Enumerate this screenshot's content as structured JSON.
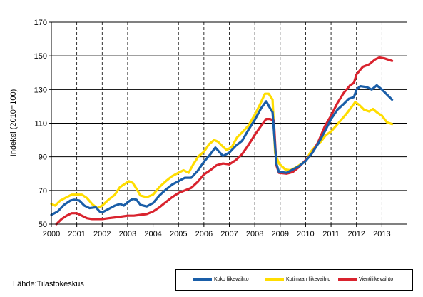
{
  "chart_data": {
    "type": "line",
    "title": "",
    "xlabel": "",
    "ylabel": "Indeksi (2010=100)",
    "ylim": [
      50,
      170
    ],
    "yticks": [
      50,
      70,
      90,
      110,
      130,
      150,
      170
    ],
    "xlim": [
      2000,
      2014
    ],
    "xticks": [
      "2000",
      "2001",
      "2002",
      "2003",
      "2004",
      "2005",
      "2006",
      "2007",
      "2008",
      "2009",
      "2010",
      "2011",
      "2012",
      "2013"
    ],
    "grid": "vertical dashed per year, horizontal solid per tick",
    "legend_position": "bottom-right",
    "series": [
      {
        "name": "Koko liikevaihto",
        "color": "#1a5ea8",
        "points": [
          [
            2000.0,
            55.5
          ],
          [
            2000.25,
            57.5
          ],
          [
            2000.5,
            61.5
          ],
          [
            2000.75,
            64.0
          ],
          [
            2000.9,
            64.5
          ],
          [
            2001.1,
            64.0
          ],
          [
            2001.3,
            61.0
          ],
          [
            2001.5,
            59.5
          ],
          [
            2001.75,
            60.0
          ],
          [
            2001.9,
            57.5
          ],
          [
            2002.0,
            57.0
          ],
          [
            2002.25,
            59.0
          ],
          [
            2002.5,
            61.0
          ],
          [
            2002.7,
            62.0
          ],
          [
            2002.85,
            61.0
          ],
          [
            2003.0,
            63.0
          ],
          [
            2003.2,
            65.0
          ],
          [
            2003.35,
            64.5
          ],
          [
            2003.5,
            61.5
          ],
          [
            2003.75,
            60.5
          ],
          [
            2004.0,
            62.5
          ],
          [
            2004.25,
            67.0
          ],
          [
            2004.5,
            70.5
          ],
          [
            2004.75,
            73.5
          ],
          [
            2005.0,
            75.5
          ],
          [
            2005.25,
            77.5
          ],
          [
            2005.5,
            77.5
          ],
          [
            2005.75,
            81.5
          ],
          [
            2006.0,
            87.0
          ],
          [
            2006.25,
            91.5
          ],
          [
            2006.45,
            95.5
          ],
          [
            2006.6,
            93.0
          ],
          [
            2006.75,
            90.5
          ],
          [
            2007.0,
            92.5
          ],
          [
            2007.25,
            96.5
          ],
          [
            2007.5,
            99.5
          ],
          [
            2007.75,
            106.0
          ],
          [
            2008.0,
            112.0
          ],
          [
            2008.25,
            119.0
          ],
          [
            2008.45,
            123.0
          ],
          [
            2008.6,
            119.0
          ],
          [
            2008.7,
            116.5
          ],
          [
            2008.85,
            86.0
          ],
          [
            2008.95,
            81.0
          ],
          [
            2009.25,
            80.5
          ],
          [
            2009.5,
            82.5
          ],
          [
            2009.75,
            84.5
          ],
          [
            2010.0,
            87.5
          ],
          [
            2010.25,
            92.0
          ],
          [
            2010.5,
            98.0
          ],
          [
            2010.75,
            105.0
          ],
          [
            2011.0,
            112.5
          ],
          [
            2011.25,
            118.0
          ],
          [
            2011.5,
            121.5
          ],
          [
            2011.7,
            124.5
          ],
          [
            2011.9,
            125.5
          ],
          [
            2012.0,
            130.0
          ],
          [
            2012.15,
            132.0
          ],
          [
            2012.4,
            131.5
          ],
          [
            2012.6,
            130.0
          ],
          [
            2012.8,
            132.5
          ],
          [
            2013.0,
            130.0
          ],
          [
            2013.2,
            127.0
          ],
          [
            2013.4,
            124.0
          ]
        ]
      },
      {
        "name": "Kotimaan liikevaihto",
        "color": "#ffdd00",
        "points": [
          [
            2000.0,
            62.0
          ],
          [
            2000.15,
            61.0
          ],
          [
            2000.35,
            64.0
          ],
          [
            2000.6,
            66.0
          ],
          [
            2000.8,
            67.5
          ],
          [
            2001.0,
            67.5
          ],
          [
            2001.2,
            67.5
          ],
          [
            2001.4,
            65.5
          ],
          [
            2001.6,
            62.0
          ],
          [
            2001.8,
            59.5
          ],
          [
            2002.0,
            61.0
          ],
          [
            2002.25,
            64.5
          ],
          [
            2002.5,
            67.5
          ],
          [
            2002.7,
            72.0
          ],
          [
            2002.9,
            74.0
          ],
          [
            2003.05,
            75.5
          ],
          [
            2003.2,
            74.5
          ],
          [
            2003.35,
            71.0
          ],
          [
            2003.5,
            67.0
          ],
          [
            2003.75,
            66.0
          ],
          [
            2004.0,
            67.5
          ],
          [
            2004.25,
            72.0
          ],
          [
            2004.5,
            75.5
          ],
          [
            2004.75,
            78.5
          ],
          [
            2005.0,
            80.5
          ],
          [
            2005.2,
            82.0
          ],
          [
            2005.4,
            80.5
          ],
          [
            2005.6,
            86.0
          ],
          [
            2005.8,
            90.5
          ],
          [
            2006.0,
            93.0
          ],
          [
            2006.2,
            97.5
          ],
          [
            2006.4,
            100.0
          ],
          [
            2006.55,
            99.0
          ],
          [
            2006.75,
            96.0
          ],
          [
            2006.9,
            94.0
          ],
          [
            2007.1,
            96.0
          ],
          [
            2007.3,
            101.5
          ],
          [
            2007.5,
            104.5
          ],
          [
            2007.75,
            108.5
          ],
          [
            2008.0,
            115.0
          ],
          [
            2008.2,
            121.0
          ],
          [
            2008.4,
            127.5
          ],
          [
            2008.55,
            127.5
          ],
          [
            2008.7,
            124.0
          ],
          [
            2008.8,
            92.0
          ],
          [
            2008.95,
            86.0
          ],
          [
            2009.2,
            82.5
          ],
          [
            2009.4,
            82.0
          ],
          [
            2009.6,
            83.5
          ],
          [
            2009.8,
            85.5
          ],
          [
            2010.0,
            87.5
          ],
          [
            2010.2,
            93.0
          ],
          [
            2010.4,
            96.5
          ],
          [
            2010.6,
            99.0
          ],
          [
            2010.8,
            103.0
          ],
          [
            2011.0,
            105.0
          ],
          [
            2011.2,
            108.5
          ],
          [
            2011.4,
            112.0
          ],
          [
            2011.6,
            115.5
          ],
          [
            2011.8,
            119.5
          ],
          [
            2011.95,
            122.5
          ],
          [
            2012.1,
            121.0
          ],
          [
            2012.3,
            118.0
          ],
          [
            2012.5,
            117.0
          ],
          [
            2012.65,
            118.5
          ],
          [
            2012.8,
            116.5
          ],
          [
            2013.0,
            114.5
          ],
          [
            2013.2,
            110.5
          ],
          [
            2013.4,
            109.5
          ]
        ]
      },
      {
        "name": "Vientiliikevaihto",
        "color": "#d9232e",
        "points": [
          [
            2000.2,
            50.0
          ],
          [
            2000.4,
            53.0
          ],
          [
            2000.6,
            55.0
          ],
          [
            2000.8,
            56.5
          ],
          [
            2001.0,
            56.5
          ],
          [
            2001.2,
            55.0
          ],
          [
            2001.4,
            53.5
          ],
          [
            2001.6,
            53.0
          ],
          [
            2001.8,
            53.0
          ],
          [
            2002.0,
            53.0
          ],
          [
            2002.25,
            53.5
          ],
          [
            2002.5,
            54.0
          ],
          [
            2002.75,
            54.5
          ],
          [
            2003.0,
            55.0
          ],
          [
            2003.25,
            55.0
          ],
          [
            2003.5,
            55.5
          ],
          [
            2003.75,
            56.0
          ],
          [
            2004.0,
            57.5
          ],
          [
            2004.25,
            60.0
          ],
          [
            2004.5,
            63.0
          ],
          [
            2004.75,
            66.0
          ],
          [
            2005.0,
            68.5
          ],
          [
            2005.25,
            70.0
          ],
          [
            2005.5,
            71.5
          ],
          [
            2005.75,
            75.0
          ],
          [
            2006.0,
            79.5
          ],
          [
            2006.25,
            82.0
          ],
          [
            2006.5,
            85.0
          ],
          [
            2006.75,
            86.0
          ],
          [
            2007.0,
            85.5
          ],
          [
            2007.25,
            88.0
          ],
          [
            2007.5,
            91.5
          ],
          [
            2007.75,
            97.0
          ],
          [
            2008.0,
            103.0
          ],
          [
            2008.25,
            108.5
          ],
          [
            2008.45,
            112.5
          ],
          [
            2008.6,
            112.5
          ],
          [
            2008.75,
            111.5
          ],
          [
            2008.85,
            85.0
          ],
          [
            2008.95,
            80.5
          ],
          [
            2009.25,
            80.0
          ],
          [
            2009.5,
            81.0
          ],
          [
            2009.75,
            84.0
          ],
          [
            2010.0,
            88.0
          ],
          [
            2010.25,
            92.0
          ],
          [
            2010.5,
            99.0
          ],
          [
            2010.75,
            108.0
          ],
          [
            2011.0,
            114.5
          ],
          [
            2011.25,
            122.0
          ],
          [
            2011.5,
            128.0
          ],
          [
            2011.75,
            132.5
          ],
          [
            2011.9,
            134.0
          ],
          [
            2012.0,
            139.0
          ],
          [
            2012.25,
            143.5
          ],
          [
            2012.5,
            145.0
          ],
          [
            2012.75,
            148.0
          ],
          [
            2012.9,
            149.0
          ],
          [
            2013.1,
            148.5
          ],
          [
            2013.4,
            147.0
          ]
        ]
      }
    ]
  },
  "source_text": "Lähde:Tilastokeskus"
}
